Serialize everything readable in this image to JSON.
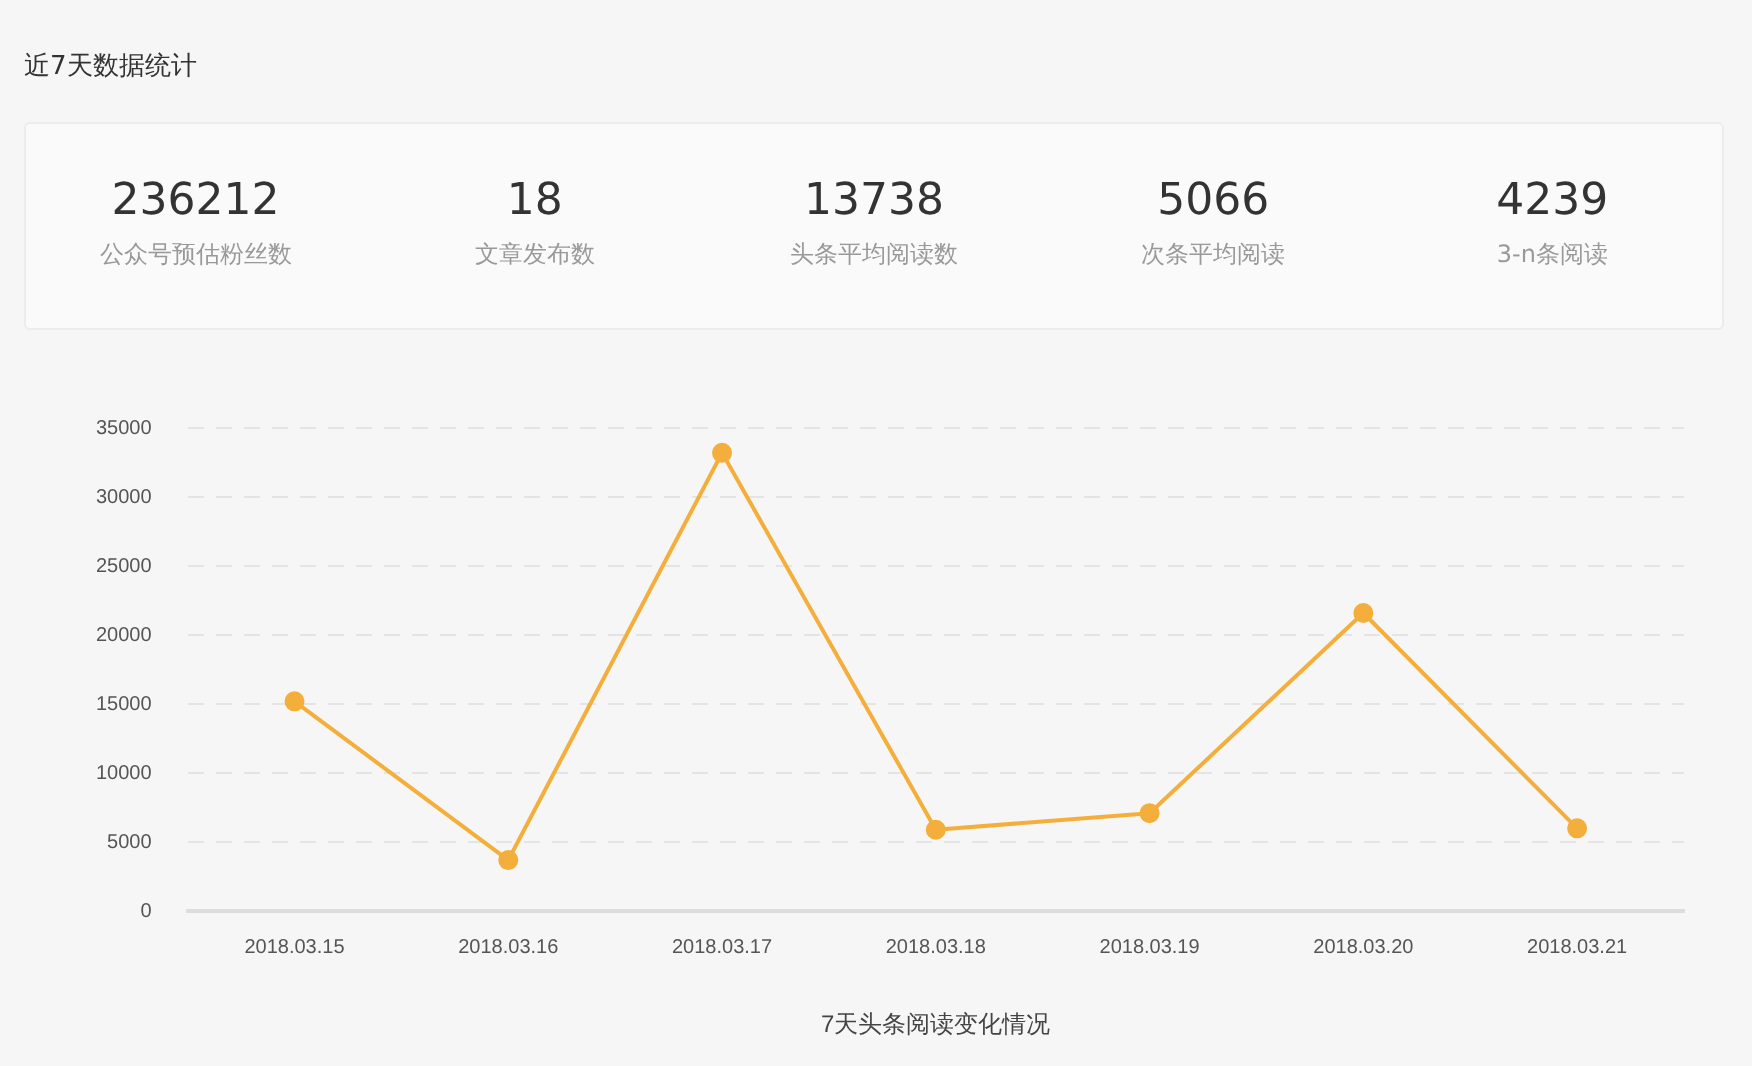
{
  "chart_data": [
    {
      "type": "other",
      "title": "近7天数据统计",
      "categories": [
        "公众号预估粉丝数",
        "文章发布数",
        "头条平均阅读数",
        "次条平均阅读",
        "3-n条阅读"
      ],
      "values": [
        236212,
        18,
        13738,
        5066,
        4239
      ],
      "data_labels": true
    },
    {
      "type": "line",
      "xlabel": "7天头条阅读变化情况",
      "categories": [
        "2018.03.15",
        "2018.03.16",
        "2018.03.17",
        "2018.03.18",
        "2018.03.19",
        "2018.03.20",
        "2018.03.21"
      ],
      "series": [
        {
          "color": "#f4ae3c",
          "values": [
            15200,
            3700,
            33200,
            5900,
            7100,
            21600,
            6000
          ]
        }
      ],
      "ylim": [
        0,
        35000
      ],
      "yticks": [
        0,
        5000,
        10000,
        15000,
        20000,
        25000,
        30000,
        35000
      ],
      "grid": "y",
      "legend": false,
      "marker": "circle",
      "line_style": "solid"
    }
  ]
}
